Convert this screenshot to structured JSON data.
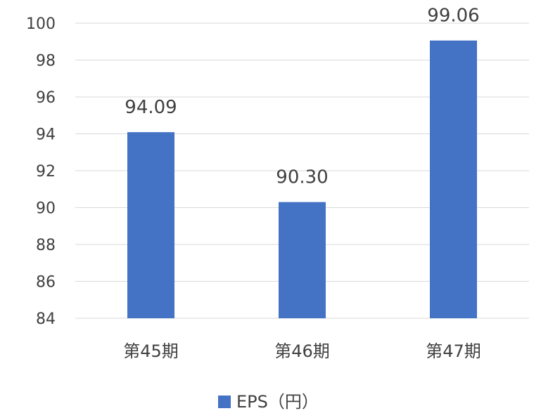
{
  "chart_data": {
    "type": "bar",
    "categories": [
      "第45期",
      "第46期",
      "第47期"
    ],
    "series": [
      {
        "name": "EPS（円）",
        "values": [
          94.09,
          90.3,
          99.06
        ],
        "color": "#4472C4"
      }
    ],
    "data_labels": [
      "94.09",
      "90.30",
      "99.06"
    ],
    "ylim": [
      84,
      100
    ],
    "yticks": [
      84,
      86,
      88,
      90,
      92,
      94,
      96,
      98,
      100
    ],
    "grid": true,
    "legend_position": "bottom"
  }
}
